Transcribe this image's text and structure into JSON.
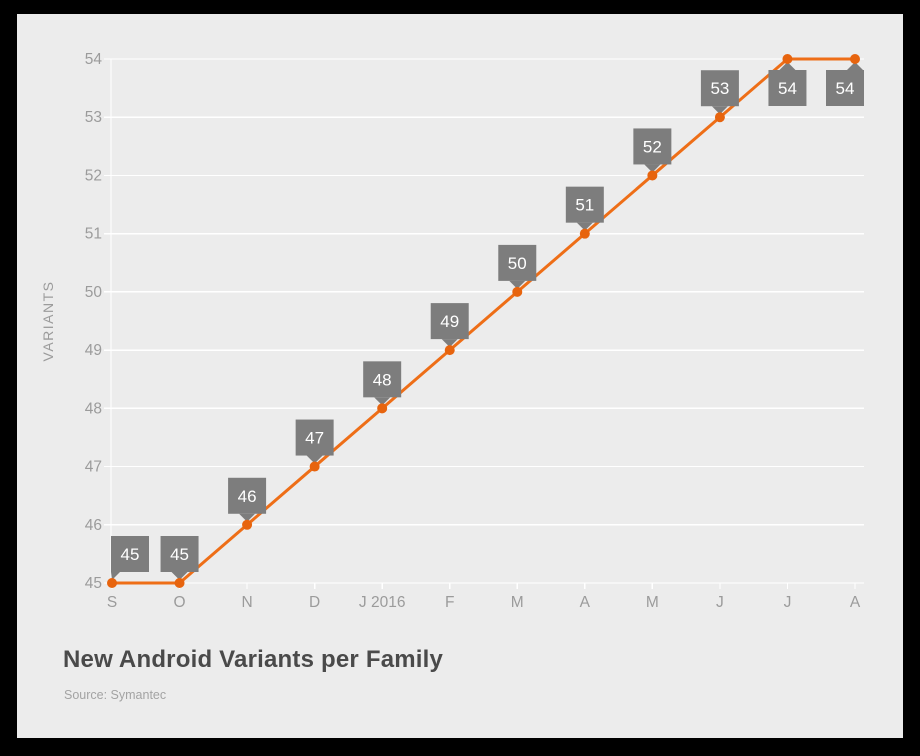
{
  "frame": {
    "border_color": "#000000",
    "card_bg": "#ececec"
  },
  "chart_data": {
    "type": "line",
    "title": "New Android Variants per Family",
    "source": "Source: Symantec",
    "ylabel": "VARIANTS",
    "xlabel": "",
    "categories": [
      "S",
      "O",
      "N",
      "D",
      "J 2016",
      "F",
      "M",
      "A",
      "M",
      "J",
      "J",
      "A"
    ],
    "series": [
      {
        "name": "New Android Variants per Family",
        "values": [
          45,
          45,
          46,
          47,
          48,
          49,
          50,
          51,
          52,
          53,
          54,
          54
        ]
      }
    ],
    "data_labels": [
      "45",
      "45",
      "46",
      "47",
      "48",
      "49",
      "50",
      "51",
      "52",
      "53",
      "54",
      "54"
    ],
    "yticks": [
      45,
      46,
      47,
      48,
      49,
      50,
      51,
      52,
      53,
      54
    ],
    "ylim": [
      45,
      54
    ],
    "grid": "horizontal",
    "legend": "none",
    "colors": {
      "line": "#ee6e17",
      "marker": "#e7640e",
      "callout_bg": "#7d7d7d",
      "callout_text": "#ffffff",
      "grid_line": "#ffffff",
      "axis_line": "#ffffff",
      "axis_text": "#9b9b9b",
      "ylabel_text": "#9b9b9b",
      "title_text": "#4a4a4a",
      "source_text": "#a3a3a3"
    }
  }
}
